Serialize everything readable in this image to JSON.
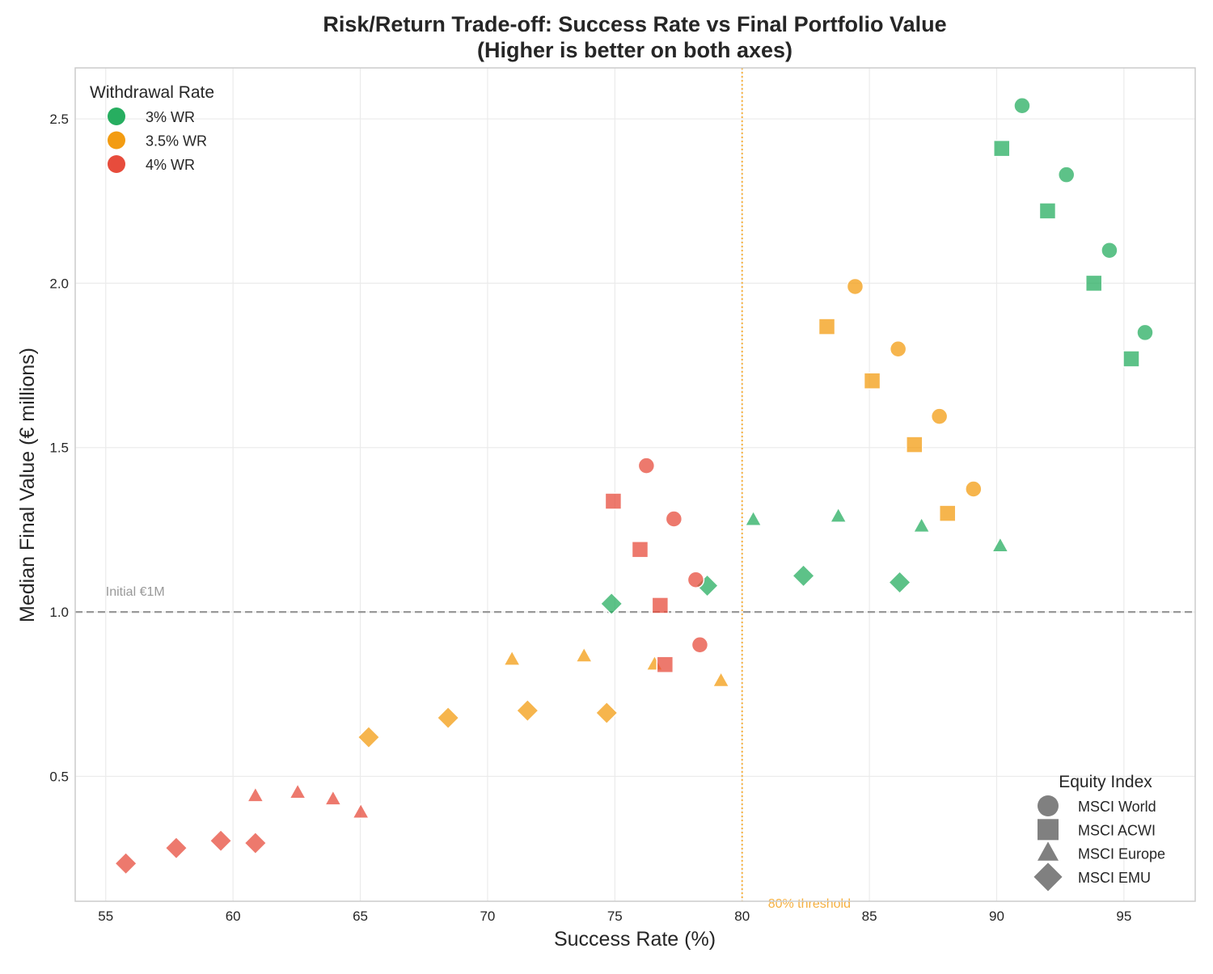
{
  "chart_data": {
    "type": "scatter",
    "title": "Risk/Return Trade-off: Success Rate vs Final Portfolio Value",
    "subtitle": "(Higher is better on both axes)",
    "xlabel": "Success Rate (%)",
    "ylabel": "Median Final Value (€ millions)",
    "xlim": [
      53.8,
      97.8
    ],
    "ylim": [
      0.12,
      2.655
    ],
    "xticks": [
      55,
      60,
      65,
      70,
      75,
      80,
      85,
      90,
      95
    ],
    "yticks": [
      0.5,
      1.0,
      1.5,
      2.0,
      2.5
    ],
    "ytick_labels": [
      "0.5",
      "1.0",
      "1.5",
      "2.0",
      "2.5"
    ],
    "grid": true,
    "reference_lines": [
      {
        "axis": "y",
        "value": 1.0,
        "label": "Initial €1M",
        "color": "#999999",
        "style": "dashed"
      },
      {
        "axis": "x",
        "value": 80,
        "label": "80% threshold",
        "color": "#f5b041",
        "style": "dotted"
      }
    ],
    "color_legend": {
      "title": "Withdrawal Rate",
      "placement": "top-left",
      "entries": [
        {
          "label": "3% WR",
          "color": "#27ae60"
        },
        {
          "label": "3.5% WR",
          "color": "#f39c12"
        },
        {
          "label": "4% WR",
          "color": "#e74c3c"
        }
      ]
    },
    "shape_legend": {
      "title": "Equity Index",
      "placement": "bottom-right",
      "entries": [
        {
          "label": "MSCI World",
          "marker": "circle"
        },
        {
          "label": "MSCI ACWI",
          "marker": "square"
        },
        {
          "label": "MSCI Europe",
          "marker": "triangle"
        },
        {
          "label": "MSCI EMU",
          "marker": "diamond"
        }
      ]
    },
    "series": [
      {
        "wr": "3% WR",
        "index": "MSCI World",
        "color": "#27ae60",
        "marker": "circle",
        "points": [
          [
            91.0,
            2.54
          ],
          [
            92.74,
            2.33
          ],
          [
            94.43,
            2.1
          ],
          [
            95.83,
            1.85
          ]
        ]
      },
      {
        "wr": "3% WR",
        "index": "MSCI ACWI",
        "color": "#27ae60",
        "marker": "square",
        "points": [
          [
            90.2,
            2.41
          ],
          [
            92.0,
            2.22
          ],
          [
            93.82,
            2.0
          ],
          [
            95.29,
            1.77
          ]
        ]
      },
      {
        "wr": "3% WR",
        "index": "MSCI Europe",
        "color": "#27ae60",
        "marker": "triangle",
        "points": [
          [
            80.44,
            1.28
          ],
          [
            83.78,
            1.29
          ],
          [
            87.05,
            1.26
          ],
          [
            90.14,
            1.2
          ]
        ]
      },
      {
        "wr": "3% WR",
        "index": "MSCI EMU",
        "color": "#27ae60",
        "marker": "diamond",
        "points": [
          [
            74.87,
            1.025
          ],
          [
            78.63,
            1.08
          ],
          [
            82.41,
            1.11
          ],
          [
            86.19,
            1.09
          ]
        ]
      },
      {
        "wr": "3.5% WR",
        "index": "MSCI World",
        "color": "#f39c12",
        "marker": "circle",
        "points": [
          [
            84.44,
            1.99
          ],
          [
            86.13,
            1.8
          ],
          [
            87.75,
            1.595
          ],
          [
            89.09,
            1.374
          ]
        ]
      },
      {
        "wr": "3.5% WR",
        "index": "MSCI ACWI",
        "color": "#f39c12",
        "marker": "square",
        "points": [
          [
            83.33,
            1.868
          ],
          [
            85.11,
            1.703
          ],
          [
            86.77,
            1.509
          ],
          [
            88.07,
            1.3
          ]
        ]
      },
      {
        "wr": "3.5% WR",
        "index": "MSCI Europe",
        "color": "#f39c12",
        "marker": "triangle",
        "points": [
          [
            70.96,
            0.855
          ],
          [
            73.79,
            0.865
          ],
          [
            76.56,
            0.84
          ],
          [
            79.17,
            0.79
          ]
        ]
      },
      {
        "wr": "3.5% WR",
        "index": "MSCI EMU",
        "color": "#f39c12",
        "marker": "diamond",
        "points": [
          [
            65.33,
            0.619
          ],
          [
            68.45,
            0.678
          ],
          [
            71.57,
            0.7
          ],
          [
            74.68,
            0.693
          ]
        ]
      },
      {
        "wr": "4% WR",
        "index": "MSCI World",
        "color": "#e74c3c",
        "marker": "circle",
        "points": [
          [
            76.24,
            1.445
          ],
          [
            77.32,
            1.283
          ],
          [
            78.18,
            1.098
          ],
          [
            78.34,
            0.9
          ]
        ]
      },
      {
        "wr": "4% WR",
        "index": "MSCI ACWI",
        "color": "#e74c3c",
        "marker": "square",
        "points": [
          [
            74.94,
            1.337
          ],
          [
            75.99,
            1.19
          ],
          [
            76.78,
            1.02
          ],
          [
            76.97,
            0.84
          ]
        ]
      },
      {
        "wr": "4% WR",
        "index": "MSCI Europe",
        "color": "#e74c3c",
        "marker": "triangle",
        "points": [
          [
            60.88,
            0.44
          ],
          [
            62.54,
            0.45
          ],
          [
            63.93,
            0.43
          ],
          [
            65.02,
            0.39
          ]
        ]
      },
      {
        "wr": "4% WR",
        "index": "MSCI EMU",
        "color": "#e74c3c",
        "marker": "diamond",
        "points": [
          [
            55.79,
            0.235
          ],
          [
            57.77,
            0.282
          ],
          [
            59.52,
            0.304
          ],
          [
            60.88,
            0.297
          ]
        ]
      }
    ]
  }
}
